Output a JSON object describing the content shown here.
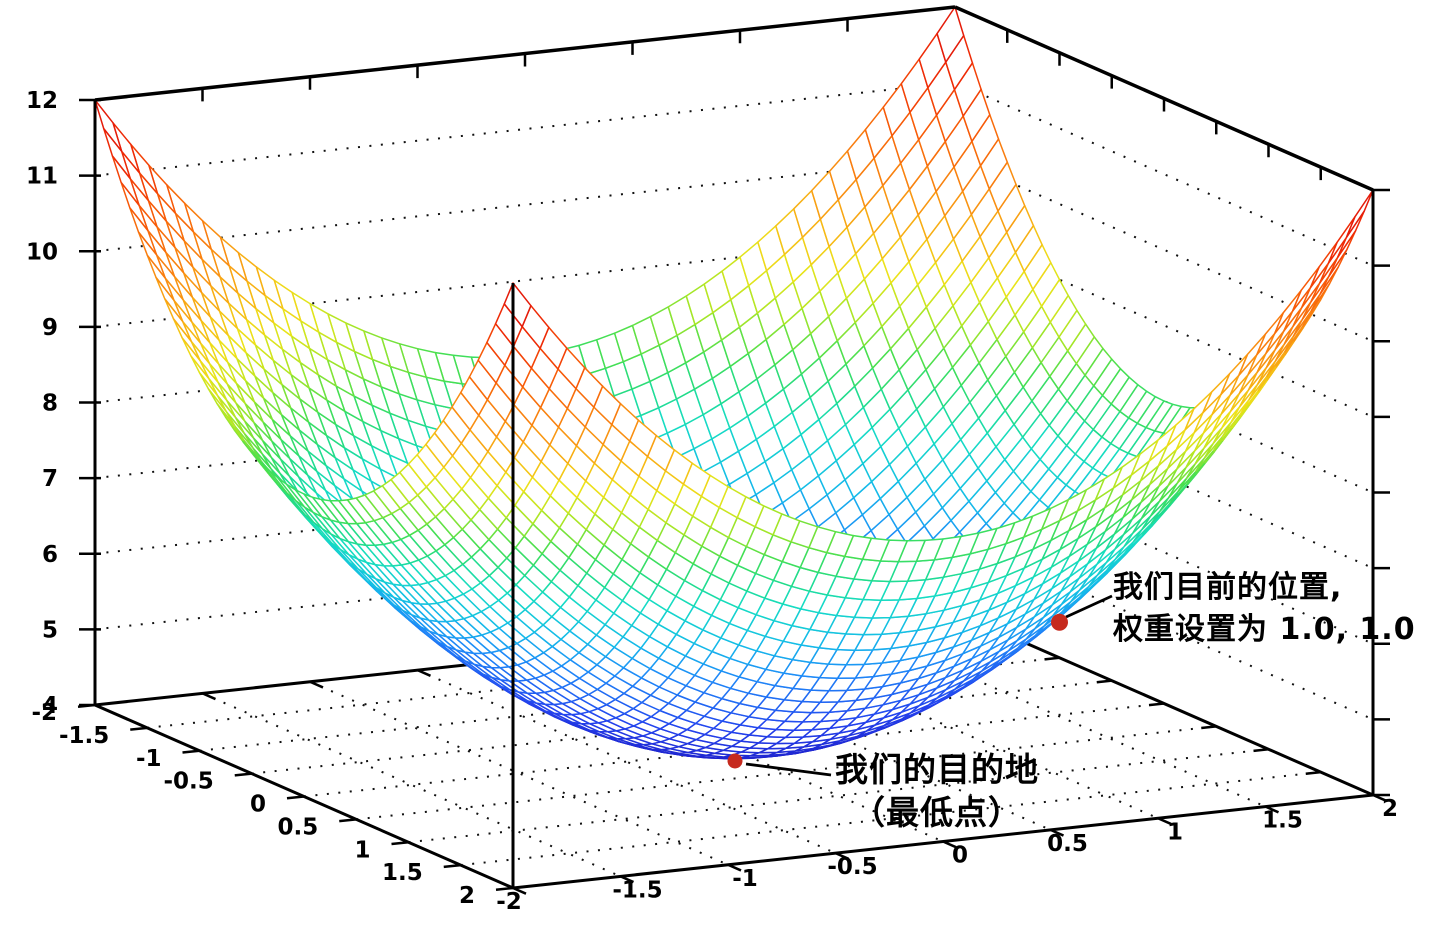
{
  "chart_data": {
    "type": "surface3d-wireframe",
    "title": "",
    "function": "z = x^2 + y^2 + 4",
    "x_range": [
      -2,
      2
    ],
    "y_range": [
      -2,
      2
    ],
    "z_range": [
      4,
      12
    ],
    "x_ticks": [
      -2,
      -1.5,
      -1,
      -0.5,
      0,
      0.5,
      1,
      1.5,
      2
    ],
    "y_ticks": [
      -2,
      -1.5,
      -1,
      -0.5,
      0,
      0.5,
      1,
      1.5,
      2
    ],
    "z_ticks": [
      4,
      5,
      6,
      7,
      8,
      9,
      10,
      11,
      12
    ],
    "grid": "dotted",
    "legend": "none",
    "mesh_divisions": 48,
    "colormap": "rainbow (blue = low z, red = high z)",
    "palette": [
      [
        0.0,
        "#1e1ec8"
      ],
      [
        0.125,
        "#2343ee"
      ],
      [
        0.25,
        "#1e8cf8"
      ],
      [
        0.32,
        "#14bce8"
      ],
      [
        0.4,
        "#16dcc4"
      ],
      [
        0.45,
        "#22dc8a"
      ],
      [
        0.5,
        "#46df50"
      ],
      [
        0.56,
        "#a8e626"
      ],
      [
        0.625,
        "#ece41a"
      ],
      [
        0.68,
        "#f8b615"
      ],
      [
        0.75,
        "#f98b12"
      ],
      [
        0.84,
        "#f85c08"
      ],
      [
        0.92,
        "#ee2a06"
      ],
      [
        1.0,
        "#dc0e0e"
      ]
    ],
    "points": [
      {
        "x": 1,
        "y": 1,
        "z": 6,
        "label": "我们目前的位置, 权重设置为 1.0, 1.0",
        "color": "#c62a1e"
      },
      {
        "x": 0,
        "y": 0,
        "z": 4,
        "label": "我们的目的地（最低点）",
        "color": "#c62a1e"
      }
    ],
    "axis_color": "#000000",
    "grid_dot_color": "#111111"
  },
  "annotations": {
    "current_position": {
      "line1": "我们目前的位置,",
      "line2": "权重设置为 1.0, 1.0"
    },
    "destination": {
      "line1": "我们的目的地",
      "line2": "（最低点）"
    }
  }
}
